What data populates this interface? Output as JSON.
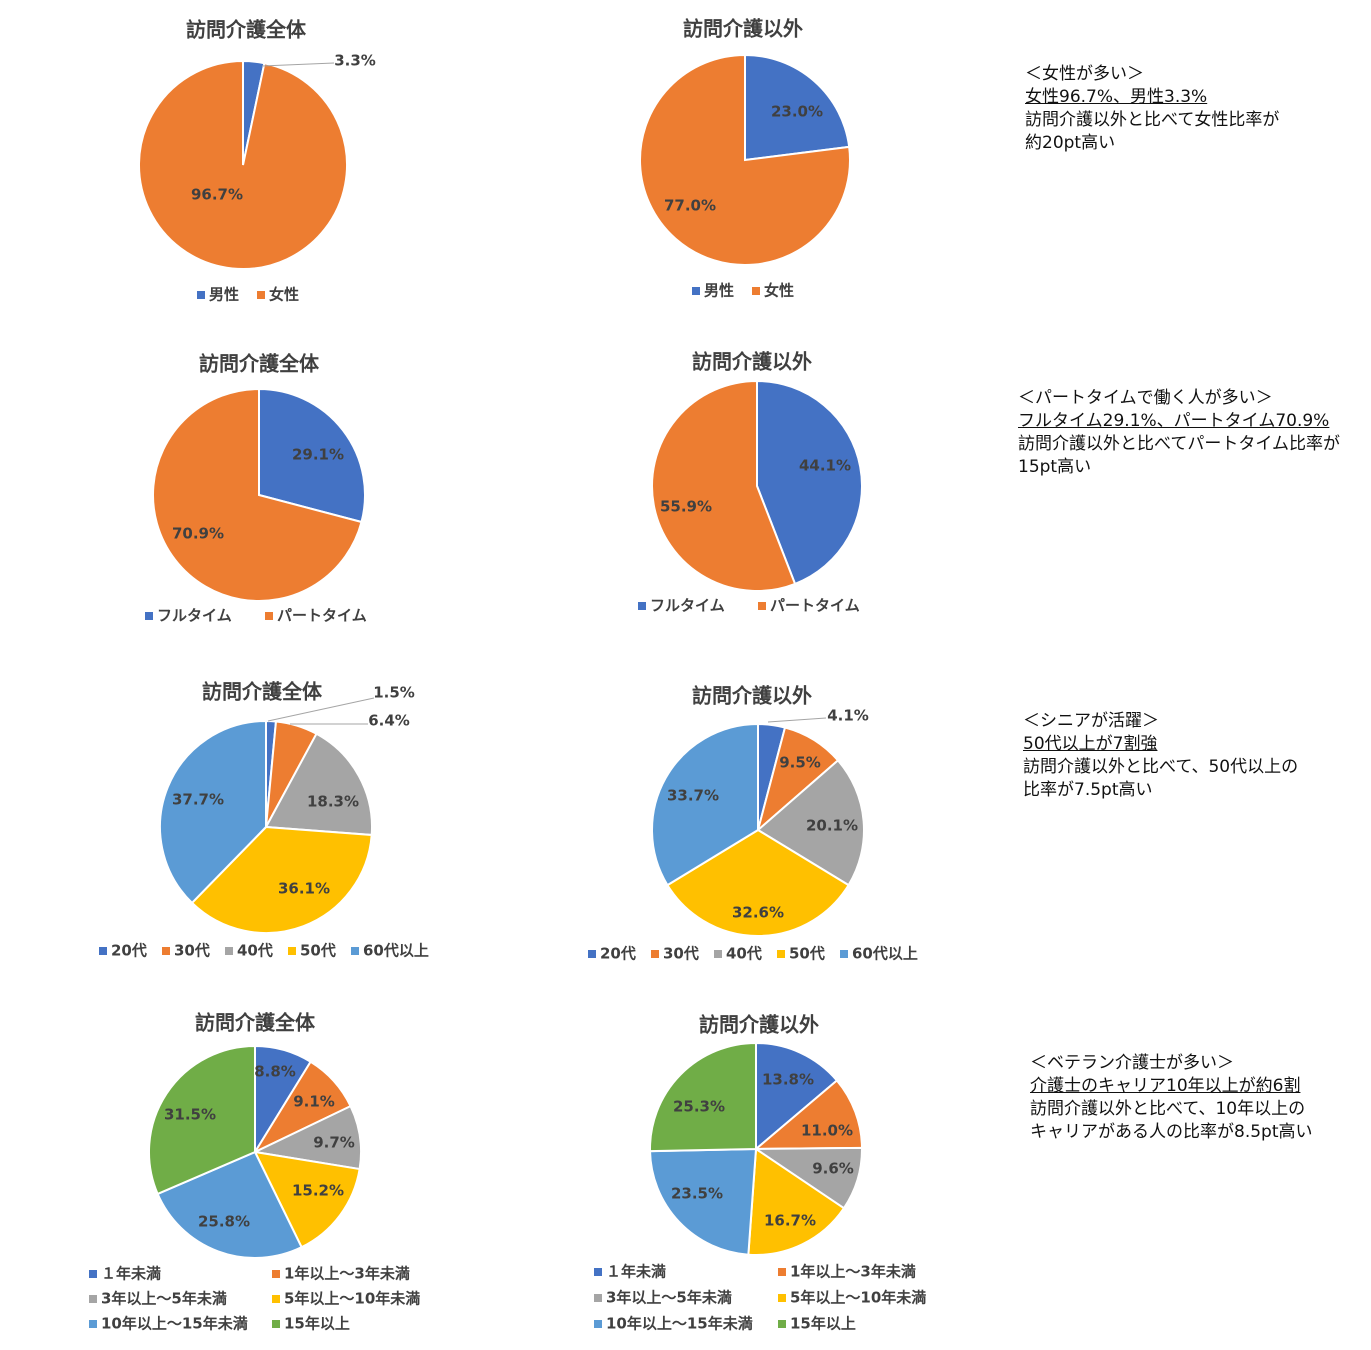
{
  "colors": {
    "blue": "#4472C4",
    "orange": "#ED7D31",
    "gray": "#A5A5A5",
    "yellow": "#FFC000",
    "lightblue": "#5B9BD5",
    "green": "#70AD47",
    "text": "#404040"
  },
  "chart_data": [
    {
      "id": "gender-all",
      "type": "pie",
      "title": "訪問介護全体",
      "categories": [
        "男性",
        "女性"
      ],
      "values": [
        3.3,
        96.7
      ],
      "labels": [
        "3.3%",
        "96.7%"
      ],
      "colors": [
        "#4472C4",
        "#ED7D31"
      ]
    },
    {
      "id": "gender-other",
      "type": "pie",
      "title": "訪問介護以外",
      "categories": [
        "男性",
        "女性"
      ],
      "values": [
        23.0,
        77.0
      ],
      "labels": [
        "23.0%",
        "77.0%"
      ],
      "colors": [
        "#4472C4",
        "#ED7D31"
      ]
    },
    {
      "id": "worktype-all",
      "type": "pie",
      "title": "訪問介護全体",
      "categories": [
        "フルタイム",
        "パートタイム"
      ],
      "values": [
        29.1,
        70.9
      ],
      "labels": [
        "29.1%",
        "70.9%"
      ],
      "colors": [
        "#4472C4",
        "#ED7D31"
      ]
    },
    {
      "id": "worktype-other",
      "type": "pie",
      "title": "訪問介護以外",
      "categories": [
        "フルタイム",
        "パートタイム"
      ],
      "values": [
        44.1,
        55.9
      ],
      "labels": [
        "44.1%",
        "55.9%"
      ],
      "colors": [
        "#4472C4",
        "#ED7D31"
      ]
    },
    {
      "id": "age-all",
      "type": "pie",
      "title": "訪問介護全体",
      "categories": [
        "20代",
        "30代",
        "40代",
        "50代",
        "60代以上"
      ],
      "values": [
        1.5,
        6.4,
        18.3,
        36.1,
        37.7
      ],
      "labels": [
        "1.5%",
        "6.4%",
        "18.3%",
        "36.1%",
        "37.7%"
      ],
      "colors": [
        "#4472C4",
        "#ED7D31",
        "#A5A5A5",
        "#FFC000",
        "#5B9BD5"
      ]
    },
    {
      "id": "age-other",
      "type": "pie",
      "title": "訪問介護以外",
      "categories": [
        "20代",
        "30代",
        "40代",
        "50代",
        "60代以上"
      ],
      "values": [
        4.1,
        9.5,
        20.1,
        32.6,
        33.7
      ],
      "labels": [
        "4.1%",
        "9.5%",
        "20.1%",
        "32.6%",
        "33.7%"
      ],
      "colors": [
        "#4472C4",
        "#ED7D31",
        "#A5A5A5",
        "#FFC000",
        "#5B9BD5"
      ]
    },
    {
      "id": "career-all",
      "type": "pie",
      "title": "訪問介護全体",
      "categories": [
        "１年未満",
        "1年以上～3年未満",
        "3年以上～5年未満",
        "5年以上～10年未満",
        "10年以上～15年未満",
        "15年以上"
      ],
      "values": [
        8.8,
        9.1,
        9.7,
        15.2,
        25.8,
        31.5
      ],
      "labels": [
        "8.8%",
        "9.1%",
        "9.7%",
        "15.2%",
        "25.8%",
        "31.5%"
      ],
      "colors": [
        "#4472C4",
        "#ED7D31",
        "#A5A5A5",
        "#FFC000",
        "#5B9BD5",
        "#70AD47"
      ]
    },
    {
      "id": "career-other",
      "type": "pie",
      "title": "訪問介護以外",
      "categories": [
        "１年未満",
        "1年以上～3年未満",
        "3年以上～5年未満",
        "5年以上～10年未満",
        "10年以上～15年未満",
        "15年以上"
      ],
      "values": [
        13.8,
        11.0,
        9.6,
        16.7,
        23.5,
        25.3
      ],
      "labels": [
        "13.8%",
        "11.0%",
        "9.6%",
        "16.7%",
        "23.5%",
        "25.3%"
      ],
      "colors": [
        "#4472C4",
        "#ED7D31",
        "#A5A5A5",
        "#FFC000",
        "#5B9BD5",
        "#70AD47"
      ]
    }
  ],
  "notes": [
    {
      "heading": "＜女性が多い＞",
      "underline": "女性96.7%、男性3.3%",
      "lines": [
        "訪問介護以外と比べて女性比率が",
        "約20pt高い"
      ]
    },
    {
      "heading": "＜パートタイムで働く人が多い＞",
      "underline": "フルタイム29.1%、パートタイム70.9%",
      "lines": [
        "訪問介護以外と比べてパートタイム比率が",
        "15pt高い"
      ]
    },
    {
      "heading": "＜シニアが活躍＞",
      "underline": "50代以上が7割強",
      "lines": [
        "訪問介護以外と比べて、50代以上の",
        "比率が7.5pt高い"
      ]
    },
    {
      "heading": "＜ベテラン介護士が多い＞",
      "underline": "介護士のキャリア10年以上が約6割",
      "lines": [
        "訪問介護以外と比べて、10年以上の",
        "キャリアがある人の比率が8.5pt高い"
      ]
    }
  ]
}
